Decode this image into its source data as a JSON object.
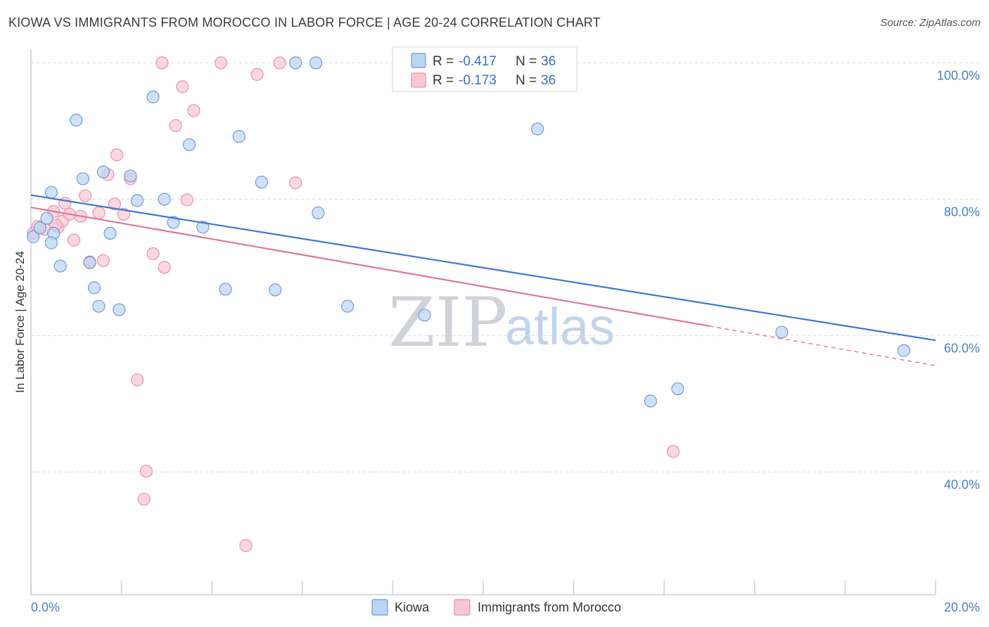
{
  "header": {
    "title": "KIOWA VS IMMIGRANTS FROM MOROCCO IN LABOR FORCE | AGE 20-24 CORRELATION CHART",
    "source": "Source: ZipAtlas.com"
  },
  "watermark": {
    "zip": "ZIP",
    "atlas": "atlas"
  },
  "colors": {
    "kiowa_fill": "#bcd4f3",
    "kiowa_stroke": "#6d9bd9",
    "kiowa_line": "#3a78d4",
    "morocco_fill": "#f9c6d5",
    "morocco_stroke": "#ea8fae",
    "morocco_line": "#e3729b"
  },
  "legend": {
    "rows": [
      {
        "r_label": "R =",
        "r_value": "-0.417",
        "n_label": "N =",
        "n_value": "36"
      },
      {
        "r_label": "R =",
        "r_value": "-0.173",
        "n_label": "N =",
        "n_value": "36"
      }
    ]
  },
  "chart_data": {
    "type": "scatter",
    "title": "KIOWA VS IMMIGRANTS FROM MOROCCO IN LABOR FORCE | AGE 20-24 CORRELATION CHART",
    "xlabel": "",
    "ylabel": "In Labor Force | Age 20-24",
    "xlim": [
      0,
      20
    ],
    "ylim": [
      22,
      102
    ],
    "x_tick_labels": [
      "0.0%",
      "20.0%"
    ],
    "y_ticks": [
      40,
      60,
      80,
      100
    ],
    "y_tick_labels": [
      "40.0%",
      "60.0%",
      "80.0%",
      "100.0%"
    ],
    "legend_position": "top-center",
    "series": [
      {
        "name": "Kiowa",
        "r": -0.417,
        "n": 36,
        "trend": {
          "x0": 0,
          "y0": 80.6,
          "x1": 20,
          "y1": 59.3
        },
        "points": [
          [
            0.05,
            74.5
          ],
          [
            0.2,
            75.8
          ],
          [
            0.35,
            77.2
          ],
          [
            0.45,
            81.0
          ],
          [
            0.5,
            75.0
          ],
          [
            0.45,
            73.6
          ],
          [
            0.65,
            70.2
          ],
          [
            1.0,
            91.6
          ],
          [
            1.15,
            83.0
          ],
          [
            1.3,
            70.7
          ],
          [
            1.4,
            67.0
          ],
          [
            1.5,
            64.3
          ],
          [
            1.6,
            84.0
          ],
          [
            1.75,
            75.0
          ],
          [
            1.95,
            63.8
          ],
          [
            2.2,
            83.4
          ],
          [
            2.35,
            79.8
          ],
          [
            2.7,
            95.0
          ],
          [
            2.95,
            80.0
          ],
          [
            3.15,
            76.6
          ],
          [
            3.5,
            88.0
          ],
          [
            3.8,
            75.9
          ],
          [
            4.3,
            66.8
          ],
          [
            4.6,
            89.2
          ],
          [
            5.1,
            82.5
          ],
          [
            5.4,
            66.7
          ],
          [
            5.85,
            100.0
          ],
          [
            6.3,
            100.0
          ],
          [
            6.35,
            78.0
          ],
          [
            7.0,
            64.3
          ],
          [
            8.7,
            63.0
          ],
          [
            11.2,
            90.3
          ],
          [
            13.7,
            50.4
          ],
          [
            14.3,
            52.2
          ],
          [
            16.6,
            60.5
          ],
          [
            19.3,
            57.8
          ]
        ]
      },
      {
        "name": "Immigrants from Morocco",
        "r": -0.173,
        "n": 36,
        "trend": {
          "x0": 0,
          "y0": 78.8,
          "x1": 15.0,
          "y1": 61.4
        },
        "trend_dashed": {
          "x0": 15.0,
          "y0": 61.4,
          "x1": 20,
          "y1": 55.6
        },
        "points": [
          [
            0.05,
            75.0
          ],
          [
            0.3,
            75.6
          ],
          [
            0.5,
            78.2
          ],
          [
            0.6,
            75.9
          ],
          [
            0.7,
            76.8
          ],
          [
            0.75,
            79.4
          ],
          [
            0.85,
            77.8
          ],
          [
            0.95,
            74.0
          ],
          [
            1.1,
            77.5
          ],
          [
            1.2,
            80.5
          ],
          [
            1.3,
            70.8
          ],
          [
            1.5,
            78.0
          ],
          [
            1.6,
            71.0
          ],
          [
            1.7,
            83.6
          ],
          [
            1.85,
            79.3
          ],
          [
            1.9,
            86.5
          ],
          [
            2.05,
            77.8
          ],
          [
            2.2,
            83.0
          ],
          [
            2.35,
            53.5
          ],
          [
            2.5,
            36.0
          ],
          [
            2.55,
            40.1
          ],
          [
            2.7,
            72.0
          ],
          [
            2.9,
            100.0
          ],
          [
            2.95,
            70.0
          ],
          [
            3.2,
            90.8
          ],
          [
            3.35,
            96.5
          ],
          [
            3.45,
            79.9
          ],
          [
            3.6,
            93.0
          ],
          [
            4.2,
            100.0
          ],
          [
            4.75,
            29.2
          ],
          [
            5.0,
            98.3
          ],
          [
            5.5,
            100.0
          ],
          [
            5.85,
            82.4
          ],
          [
            14.2,
            43.0
          ],
          [
            0.15,
            76.0
          ],
          [
            0.55,
            76.2
          ]
        ]
      }
    ]
  }
}
